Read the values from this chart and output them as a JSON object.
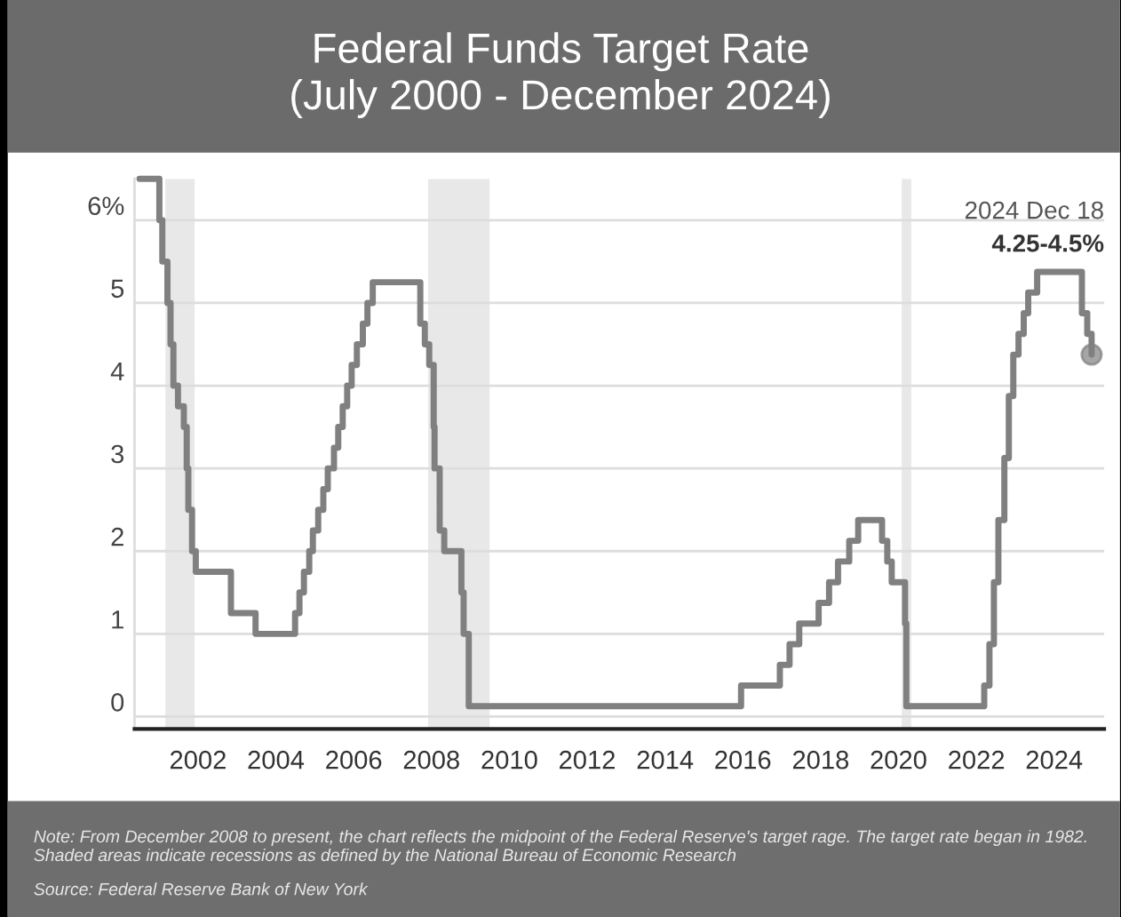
{
  "chart_data": {
    "type": "step",
    "title": "Federal Funds Target Rate\n(July 2000 - December 2024)",
    "x": [
      "2000-07-01",
      "2001-01-03",
      "2001-01-31",
      "2001-03-20",
      "2001-04-18",
      "2001-05-15",
      "2001-06-27",
      "2001-08-21",
      "2001-09-17",
      "2001-10-02",
      "2001-11-06",
      "2001-12-11",
      "2002-11-06",
      "2003-06-25",
      "2004-06-30",
      "2004-08-10",
      "2004-09-21",
      "2004-11-10",
      "2004-12-14",
      "2005-02-02",
      "2005-03-22",
      "2005-05-03",
      "2005-06-30",
      "2005-08-09",
      "2005-09-20",
      "2005-11-01",
      "2005-12-13",
      "2006-01-31",
      "2006-03-28",
      "2006-05-10",
      "2006-06-29",
      "2007-09-18",
      "2007-10-31",
      "2007-12-11",
      "2008-01-22",
      "2008-01-30",
      "2008-03-18",
      "2008-04-30",
      "2008-10-08",
      "2008-10-29",
      "2008-12-16",
      "2015-12-16",
      "2016-12-14",
      "2017-03-15",
      "2017-06-14",
      "2017-12-13",
      "2018-03-21",
      "2018-06-13",
      "2018-09-26",
      "2018-12-19",
      "2019-07-31",
      "2019-09-18",
      "2019-10-30",
      "2020-03-03",
      "2020-03-15",
      "2022-03-16",
      "2022-05-04",
      "2022-06-15",
      "2022-07-27",
      "2022-09-21",
      "2022-11-02",
      "2022-12-14",
      "2023-02-01",
      "2023-03-22",
      "2023-05-03",
      "2023-07-26",
      "2024-09-18",
      "2024-11-07",
      "2024-12-18"
    ],
    "series": [
      {
        "color": "#808080",
        "values": [
          6.5,
          6.0,
          5.5,
          5.0,
          4.5,
          4.0,
          3.75,
          3.5,
          3.0,
          2.5,
          2.0,
          1.75,
          1.25,
          1.0,
          1.25,
          1.5,
          1.75,
          2.0,
          2.25,
          2.5,
          2.75,
          3.0,
          3.25,
          3.5,
          3.75,
          4.0,
          4.25,
          4.5,
          4.75,
          5.0,
          5.25,
          4.75,
          4.5,
          4.25,
          3.5,
          3.0,
          2.25,
          2.0,
          1.5,
          1.0,
          0.125,
          0.375,
          0.625,
          0.875,
          1.125,
          1.375,
          1.625,
          1.875,
          2.125,
          2.375,
          2.125,
          1.875,
          1.625,
          1.125,
          0.125,
          0.375,
          0.875,
          1.625,
          2.375,
          3.125,
          3.875,
          4.375,
          4.625,
          4.875,
          5.125,
          5.375,
          4.875,
          4.625,
          4.375
        ]
      }
    ],
    "xlim": [
      "2000-05-15",
      "2025-04-15"
    ],
    "xticks": [
      {
        "value": "2002",
        "label": "2002"
      },
      {
        "value": "2004",
        "label": "2004"
      },
      {
        "value": "2006",
        "label": "2006"
      },
      {
        "value": "2008",
        "label": "2008"
      },
      {
        "value": "2010",
        "label": "2010"
      },
      {
        "value": "2012",
        "label": "2012"
      },
      {
        "value": "2014",
        "label": "2014"
      },
      {
        "value": "2016",
        "label": "2016"
      },
      {
        "value": "2018",
        "label": "2018"
      },
      {
        "value": "2020",
        "label": "2020"
      },
      {
        "value": "2022",
        "label": "2022"
      },
      {
        "value": "2024",
        "label": "2024"
      }
    ],
    "ylim": [
      -0.15,
      6.5
    ],
    "yticks": [
      0,
      1,
      2,
      3,
      4,
      5,
      {
        "value": 6,
        "label": "6%"
      }
    ],
    "grid": "y",
    "bands": [
      {
        "axis": "x",
        "from": "2001-03-01",
        "to": "2001-11-30",
        "color": "#e8e8e8"
      },
      {
        "axis": "x",
        "from": "2007-12-01",
        "to": "2009-06-30",
        "color": "#e8e8e8"
      },
      {
        "axis": "x",
        "from": "2020-02-01",
        "to": "2020-04-30",
        "color": "#e8e8e8"
      }
    ],
    "annotations": [
      "2024 Dec 18",
      "4.25-4.5%",
      "Note: From December 2008 to present, the chart reflects the midpoint of the Federal Reserve's target rage. The target rate began in 1982. Shaded areas indicate recessions as defined by the National Bureau of Economic Research",
      "Source: Federal Reserve Bank of New York"
    ]
  }
}
